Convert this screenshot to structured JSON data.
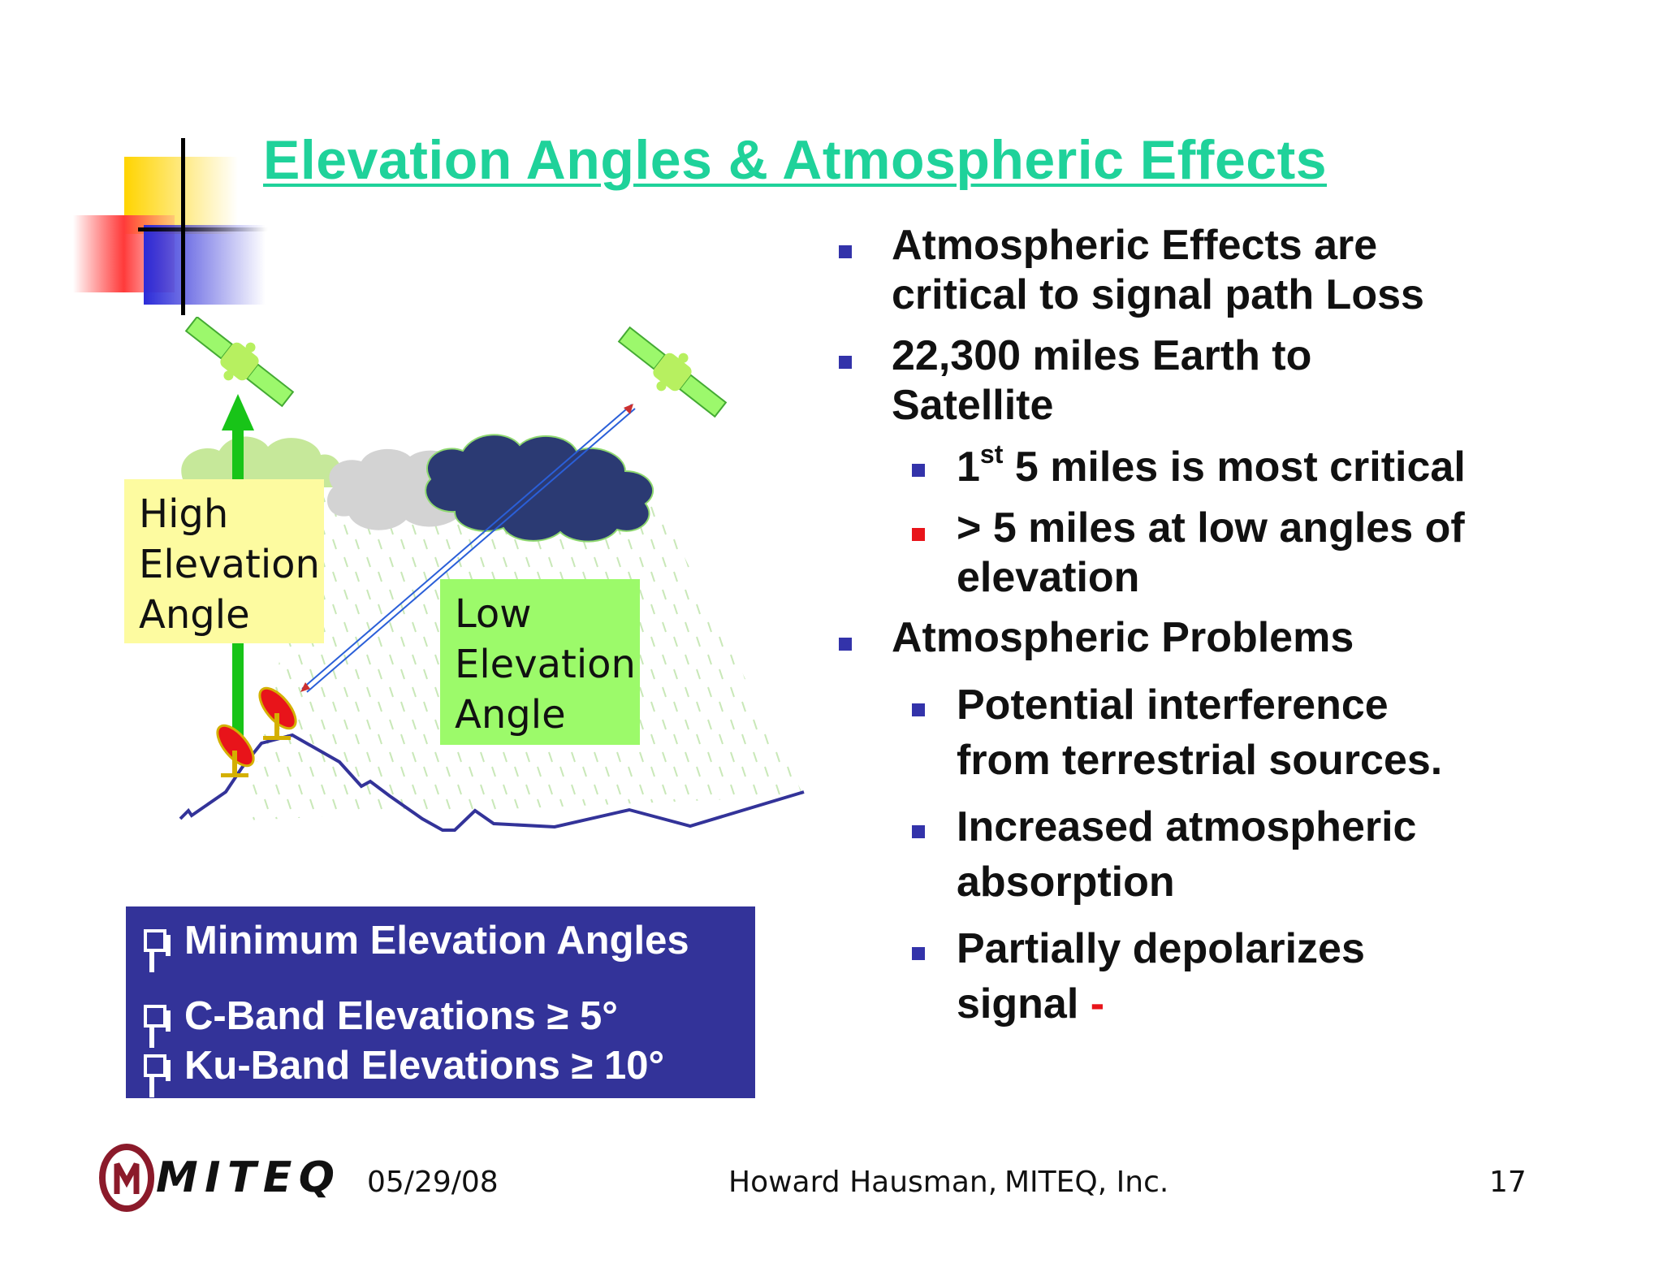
{
  "title": "Elevation Angles & Atmospheric Effects",
  "labels": {
    "high": [
      "High",
      "Elevation",
      "Angle"
    ],
    "low": [
      "Low",
      "Elevation",
      "Angle"
    ]
  },
  "min_box": {
    "line1": "Minimum Elevation Angles",
    "line2": "C-Band Elevations ≥ 5°",
    "line3": "Ku-Band Elevations ≥ 10°"
  },
  "bullets": {
    "b1_line1": "Atmospheric Effects are",
    "b1_line2": "critical to signal path Loss",
    "b2_line1": "22,300 miles Earth to",
    "b2_line2": "Satellite",
    "s1_pre": "1",
    "s1_sup": "st",
    "s1_rest": " 5 miles is most critical",
    "s2_line1": "> 5 miles at low angles of",
    "s2_line2": "elevation",
    "b3": "Atmospheric Problems",
    "s3_line1": "Potential interference",
    "s3_line2": "from terrestrial sources.",
    "s4_line1": "Increased atmospheric",
    "s4_line2": "absorption",
    "s5_line1": "Partially depolarizes",
    "s5_line2": "signal",
    "s5_dash": "-"
  },
  "footer": {
    "logo_text": "MITEQ",
    "date": "05/29/08",
    "author": "Howard Hausman,",
    "company": "MITEQ, Inc.",
    "page": "17"
  },
  "colors": {
    "title": "#1fd29a",
    "bullet": "#3333aa",
    "bullet_red": "#e8141a",
    "box_blue": "#333399",
    "label_yellow": "#fdfba0",
    "label_green": "#9cfa6a"
  },
  "icons": [
    "satellite-icon",
    "cloud-icon",
    "dish-antenna-icon",
    "checkbox-icon"
  ]
}
